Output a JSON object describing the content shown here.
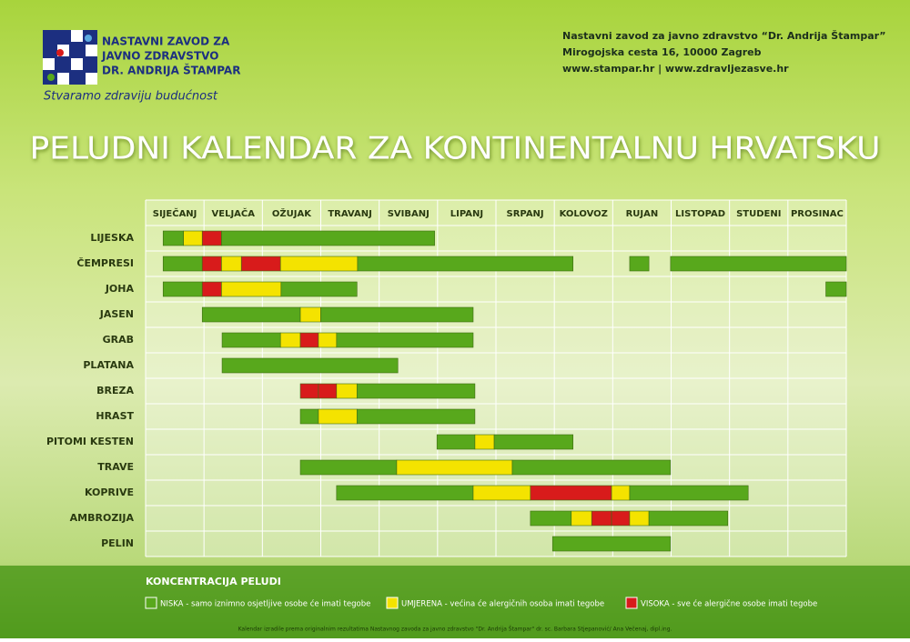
{
  "header": {
    "logo_lines": [
      "NASTAVNI ZAVOD ZA",
      "JAVNO ZDRAVSTVO",
      "DR. ANDRIJA ŠTAMPAR"
    ],
    "tagline": "Stvaramo zdraviju budućnost",
    "address": [
      "Nastavni zavod za javno zdravstvo “Dr. Andrija Štampar”",
      "Mirogojska cesta 16, 10000 Zagreb",
      "www.stampar.hr  |  www.zdravljezasve.hr"
    ]
  },
  "chart_data": {
    "type": "gantt",
    "title": "PELUDNI KALENDAR ZA KONTINENTALNU HRVATSKU",
    "categories": [
      "SIJEČANJ",
      "VELJAČA",
      "OŽUJAK",
      "TRAVANJ",
      "SVIBANJ",
      "LIPANJ",
      "SRPANJ",
      "KOLOVOZ",
      "RUJAN",
      "LISTOPAD",
      "STUDENI",
      "PROSINAC"
    ],
    "xlim": [
      0,
      12
    ],
    "legend_title": "KONCENTRACIJA PELUDI",
    "legend": [
      {
        "name": "NISKA - samo iznimno osjetljive osobe će imati tegobe",
        "color": "#58a81c"
      },
      {
        "name": "UMJERENA - većina će alergičnih osoba imati tegobe",
        "color": "#f4e300"
      },
      {
        "name": "VISOKA - sve će alergične osobe imati tegobe",
        "color": "#d81b1b"
      }
    ],
    "rows": [
      {
        "name": "LIJESKA",
        "segments": [
          {
            "start": 0.3,
            "end": 0.65,
            "level": 0
          },
          {
            "start": 0.65,
            "end": 0.97,
            "level": 1
          },
          {
            "start": 0.97,
            "end": 1.3,
            "level": 2
          },
          {
            "start": 1.3,
            "end": 4.95,
            "level": 0
          }
        ]
      },
      {
        "name": "ČEMPRESI",
        "segments": [
          {
            "start": 0.3,
            "end": 0.97,
            "level": 0
          },
          {
            "start": 0.97,
            "end": 1.3,
            "level": 2
          },
          {
            "start": 1.3,
            "end": 1.64,
            "level": 1
          },
          {
            "start": 1.64,
            "end": 2.31,
            "level": 2
          },
          {
            "start": 2.31,
            "end": 3.63,
            "level": 1
          },
          {
            "start": 3.63,
            "end": 7.32,
            "level": 0
          },
          {
            "start": 8.29,
            "end": 8.62,
            "level": 0
          },
          {
            "start": 8.99,
            "end": 12,
            "level": 0
          }
        ]
      },
      {
        "name": "JOHA",
        "segments": [
          {
            "start": 0.3,
            "end": 0.97,
            "level": 0
          },
          {
            "start": 0.97,
            "end": 1.3,
            "level": 2
          },
          {
            "start": 1.3,
            "end": 2.32,
            "level": 1
          },
          {
            "start": 2.32,
            "end": 3.62,
            "level": 0
          },
          {
            "start": 11.65,
            "end": 12,
            "level": 0
          }
        ]
      },
      {
        "name": "JASEN",
        "segments": [
          {
            "start": 0.97,
            "end": 2.65,
            "level": 0
          },
          {
            "start": 2.65,
            "end": 3,
            "level": 1
          },
          {
            "start": 3,
            "end": 5.61,
            "level": 0
          }
        ]
      },
      {
        "name": "GRAB",
        "segments": [
          {
            "start": 1.31,
            "end": 2.31,
            "level": 0
          },
          {
            "start": 2.31,
            "end": 2.65,
            "level": 1
          },
          {
            "start": 2.65,
            "end": 2.96,
            "level": 2
          },
          {
            "start": 2.96,
            "end": 3.27,
            "level": 1
          },
          {
            "start": 3.27,
            "end": 5.61,
            "level": 0
          }
        ]
      },
      {
        "name": "PLATANA",
        "segments": [
          {
            "start": 1.31,
            "end": 4.32,
            "level": 0
          }
        ]
      },
      {
        "name": "BREZA",
        "segments": [
          {
            "start": 2.65,
            "end": 2.96,
            "level": 2
          },
          {
            "start": 2.96,
            "end": 3.27,
            "level": 2
          },
          {
            "start": 3.27,
            "end": 3.62,
            "level": 1
          },
          {
            "start": 3.62,
            "end": 5.64,
            "level": 0
          }
        ]
      },
      {
        "name": "HRAST",
        "segments": [
          {
            "start": 2.65,
            "end": 2.96,
            "level": 0
          },
          {
            "start": 2.96,
            "end": 3.62,
            "level": 1
          },
          {
            "start": 3.62,
            "end": 5.64,
            "level": 0
          }
        ]
      },
      {
        "name": "PITOMI KESTEN",
        "segments": [
          {
            "start": 4.99,
            "end": 5.64,
            "level": 0
          },
          {
            "start": 5.64,
            "end": 5.97,
            "level": 1
          },
          {
            "start": 5.97,
            "end": 7.32,
            "level": 0
          }
        ]
      },
      {
        "name": "TRAVE",
        "segments": [
          {
            "start": 2.65,
            "end": 4.3,
            "level": 0
          },
          {
            "start": 4.3,
            "end": 6.28,
            "level": 1
          },
          {
            "start": 6.28,
            "end": 8.99,
            "level": 0
          }
        ]
      },
      {
        "name": "KOPRIVE",
        "segments": [
          {
            "start": 3.27,
            "end": 5.61,
            "level": 0
          },
          {
            "start": 5.61,
            "end": 6.59,
            "level": 1
          },
          {
            "start": 6.59,
            "end": 7.98,
            "level": 2
          },
          {
            "start": 7.98,
            "end": 8.29,
            "level": 1
          },
          {
            "start": 8.29,
            "end": 10.32,
            "level": 0
          }
        ]
      },
      {
        "name": "AMBROZIJA",
        "segments": [
          {
            "start": 6.59,
            "end": 7.29,
            "level": 0
          },
          {
            "start": 7.29,
            "end": 7.64,
            "level": 1
          },
          {
            "start": 7.64,
            "end": 7.98,
            "level": 2
          },
          {
            "start": 7.98,
            "end": 8.29,
            "level": 2
          },
          {
            "start": 8.29,
            "end": 8.62,
            "level": 1
          },
          {
            "start": 8.62,
            "end": 9.97,
            "level": 0
          }
        ]
      },
      {
        "name": "PELIN",
        "segments": [
          {
            "start": 6.97,
            "end": 8.99,
            "level": 0
          }
        ]
      }
    ],
    "footnote": "Kalendar izradile prema originalnim rezultatima Nastavnog zavoda za javno zdravstvo \"Dr. Andrija Štampar\" dr. sc. Barbara Stjepanović/ Ana Večenaj, dipl.ing."
  }
}
